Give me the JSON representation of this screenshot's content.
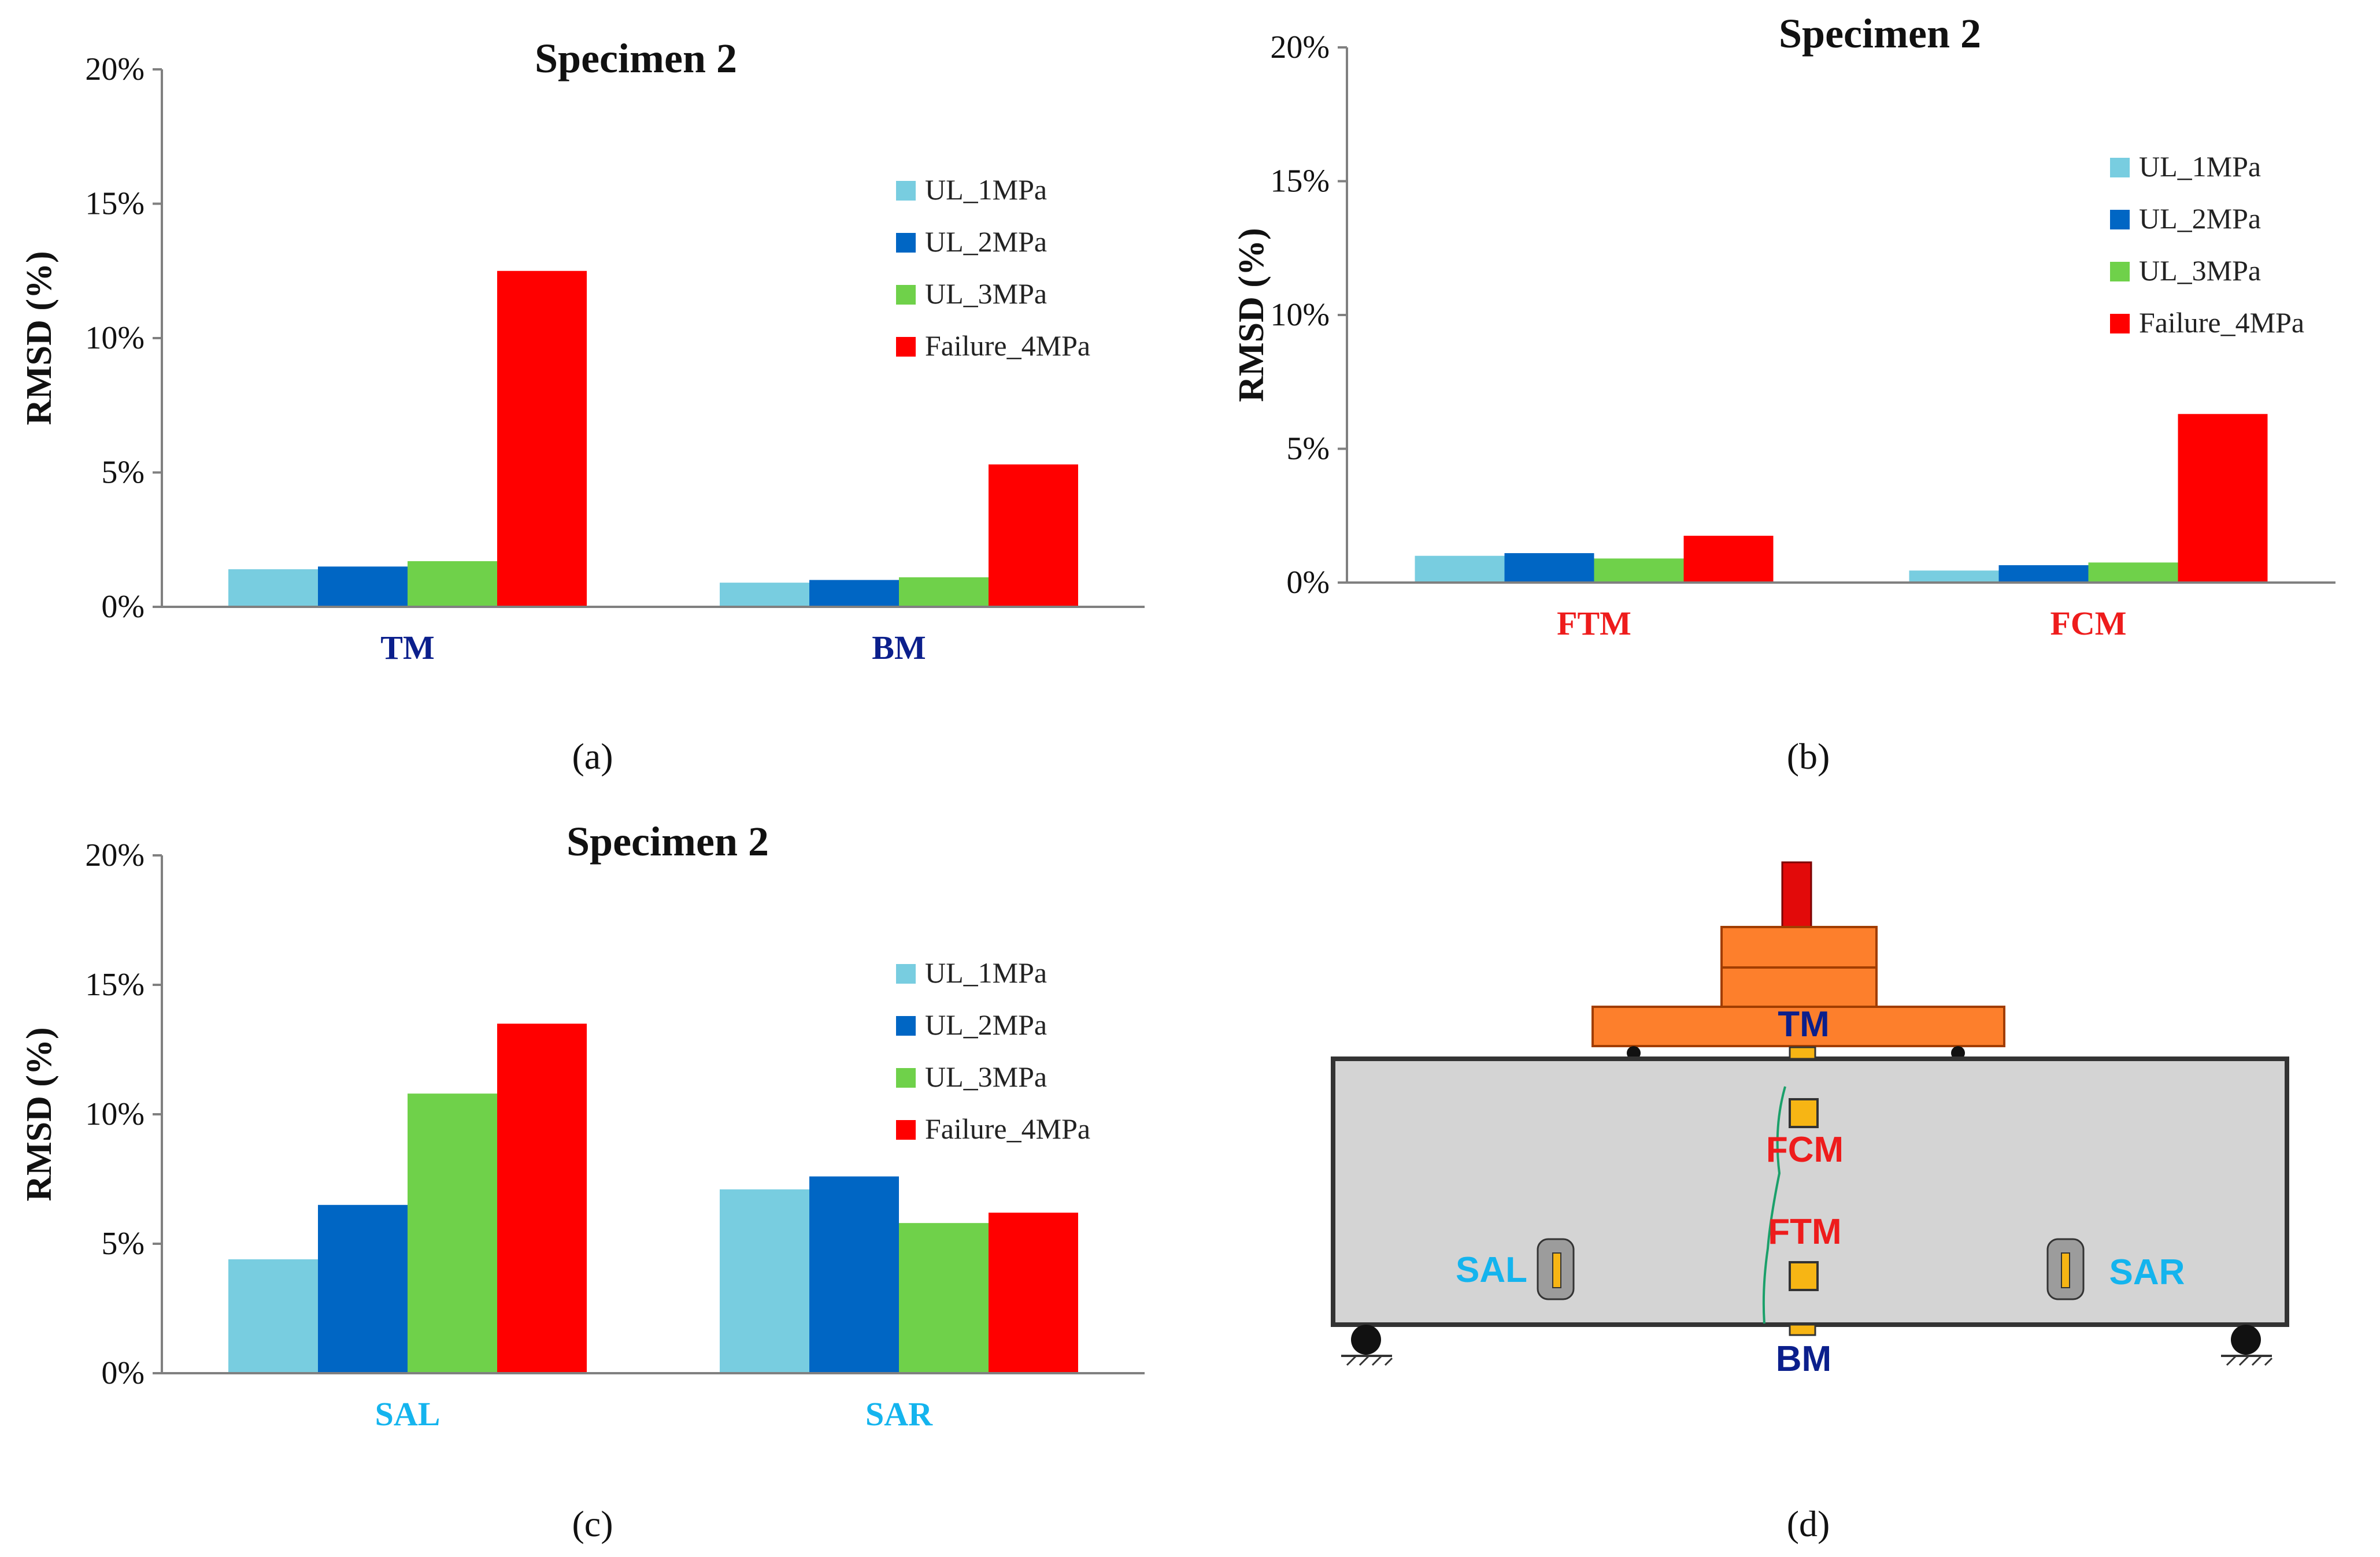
{
  "colors": {
    "UL_1MPa": "#78cde0",
    "UL_2MPa": "#0066c4",
    "UL_3MPa": "#6fd14a",
    "Failure_4MPa": "#ff0000",
    "navy": "#0b1f8c",
    "red": "#ee1c1c",
    "cyan": "#14b4ee"
  },
  "chart_data": [
    {
      "type": "bar",
      "title": "Specimen 2",
      "ylabel": "RMSD (%)",
      "yticks": [
        "0%",
        "5%",
        "10%",
        "15%",
        "20%"
      ],
      "ylim": [
        0,
        20
      ],
      "categories": [
        "TM",
        "BM"
      ],
      "series": [
        {
          "name": "UL_1MPa",
          "values": [
            1.4,
            0.9
          ]
        },
        {
          "name": "UL_2MPa",
          "values": [
            1.5,
            1.0
          ]
        },
        {
          "name": "UL_3MPa",
          "values": [
            1.7,
            1.1
          ]
        },
        {
          "name": "Failure_4MPa",
          "values": [
            12.5,
            5.3
          ]
        }
      ],
      "legend": "right",
      "panel_label": "(a)"
    },
    {
      "type": "bar",
      "title": "Specimen 2",
      "ylabel": "RMSD (%)",
      "yticks": [
        "0%",
        "5%",
        "10%",
        "15%",
        "20%"
      ],
      "ylim": [
        0,
        20
      ],
      "categories": [
        "FTM",
        "FCM"
      ],
      "series": [
        {
          "name": "UL_1MPa",
          "values": [
            1.0,
            0.45
          ]
        },
        {
          "name": "UL_2MPa",
          "values": [
            1.1,
            0.65
          ]
        },
        {
          "name": "UL_3MPa",
          "values": [
            0.9,
            0.75
          ]
        },
        {
          "name": "Failure_4MPa",
          "values": [
            1.75,
            6.3
          ]
        }
      ],
      "legend": "right",
      "panel_label": "(b)"
    },
    {
      "type": "bar",
      "title": "Specimen 2",
      "ylabel": "RMSD (%)",
      "yticks": [
        "0%",
        "5%",
        "10%",
        "15%",
        "20%"
      ],
      "ylim": [
        0,
        20
      ],
      "categories": [
        "SAL",
        "SAR"
      ],
      "series": [
        {
          "name": "UL_1MPa",
          "values": [
            4.4,
            7.1
          ]
        },
        {
          "name": "UL_2MPa",
          "values": [
            6.5,
            7.6
          ]
        },
        {
          "name": "UL_3MPa",
          "values": [
            10.8,
            5.8
          ]
        },
        {
          "name": "Failure_4MPa",
          "values": [
            13.5,
            6.2
          ]
        }
      ],
      "legend": "right",
      "panel_label": "(c)"
    }
  ],
  "diagram": {
    "labels": {
      "tm": "TM",
      "fcm": "FCM",
      "ftm": "FTM",
      "sal": "SAL",
      "sar": "SAR",
      "bm": "BM"
    },
    "panel_label": "(d)"
  }
}
